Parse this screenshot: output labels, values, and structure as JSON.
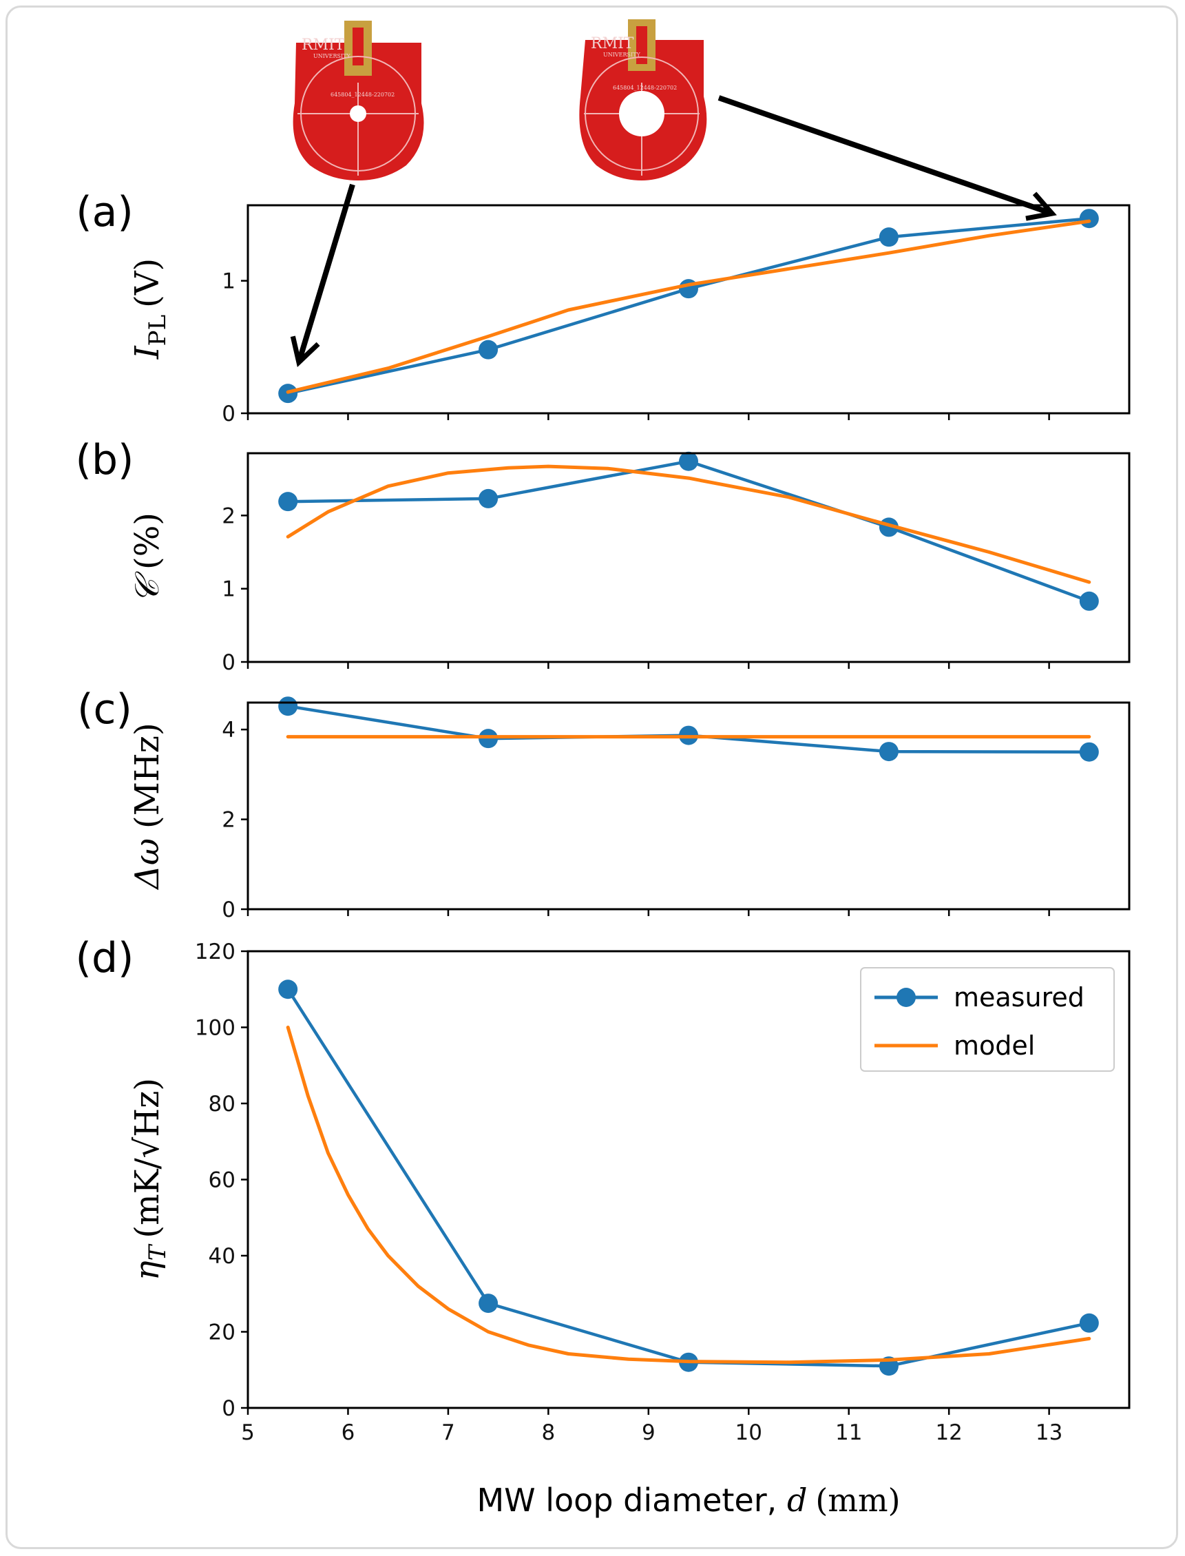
{
  "colors": {
    "measured": "#1f77b4",
    "model": "#ff7f0e",
    "pcb": "#d81f1f",
    "pad": "#c8a040"
  },
  "photos": {
    "left": {
      "logo": "RMIT",
      "sub": "UNIVERSITY",
      "serial": "645804_12448-220702",
      "icon": "pcb-photo-small-hole"
    },
    "right": {
      "logo": "RMIT",
      "sub": "UNIVERSITY",
      "serial": "645804_12448-220702",
      "icon": "pcb-photo-large-hole"
    }
  },
  "chart_data": [
    {
      "type": "line",
      "panel_label": "(a)",
      "ylabel": "I_PL (V)",
      "ylabel_main": "I",
      "ylabel_sub": "PL",
      "ylabel_unit": "(V)",
      "xlim": [
        5,
        13.8
      ],
      "ylim": [
        0,
        1.57
      ],
      "yticks": [
        0,
        1
      ],
      "xticks": [
        5,
        6,
        7,
        8,
        9,
        10,
        11,
        12,
        13
      ],
      "show_xtick_labels": false,
      "series": [
        {
          "name": "measured",
          "x": [
            5.4,
            7.4,
            9.4,
            11.4,
            13.4
          ],
          "values": [
            0.15,
            0.48,
            0.94,
            1.33,
            1.47
          ]
        },
        {
          "name": "model",
          "x": [
            5.4,
            6.4,
            7.4,
            8.2,
            9.4,
            10.4,
            11.4,
            12.4,
            13.4
          ],
          "values": [
            0.16,
            0.34,
            0.58,
            0.78,
            0.97,
            1.09,
            1.21,
            1.34,
            1.45
          ]
        }
      ]
    },
    {
      "type": "line",
      "panel_label": "(b)",
      "ylabel": "C (%)",
      "ylabel_main": "𝒞",
      "ylabel_unit": "(%)",
      "xlim": [
        5,
        13.8
      ],
      "ylim": [
        0,
        2.85
      ],
      "yticks": [
        0,
        1,
        2
      ],
      "xticks": [
        5,
        6,
        7,
        8,
        9,
        10,
        11,
        12,
        13
      ],
      "show_xtick_labels": false,
      "series": [
        {
          "name": "measured",
          "x": [
            5.4,
            7.4,
            9.4,
            11.4,
            13.4
          ],
          "values": [
            2.19,
            2.23,
            2.74,
            1.84,
            0.83
          ]
        },
        {
          "name": "model",
          "x": [
            5.4,
            5.8,
            6.4,
            7.0,
            7.6,
            8.0,
            8.6,
            9.4,
            10.4,
            11.4,
            12.4,
            13.4
          ],
          "values": [
            1.71,
            2.05,
            2.4,
            2.58,
            2.65,
            2.67,
            2.64,
            2.51,
            2.25,
            1.87,
            1.5,
            1.09
          ]
        }
      ]
    },
    {
      "type": "line",
      "panel_label": "(c)",
      "ylabel": "Δω (MHz)",
      "ylabel_main": "Δω",
      "ylabel_unit": "(MHz)",
      "xlim": [
        5,
        13.8
      ],
      "ylim": [
        0,
        4.6
      ],
      "yticks": [
        0,
        2,
        4
      ],
      "xticks": [
        5,
        6,
        7,
        8,
        9,
        10,
        11,
        12,
        13
      ],
      "show_xtick_labels": false,
      "series": [
        {
          "name": "measured",
          "x": [
            5.4,
            7.4,
            9.4,
            11.4,
            13.4
          ],
          "values": [
            4.52,
            3.8,
            3.87,
            3.51,
            3.5
          ]
        },
        {
          "name": "model",
          "x": [
            5.4,
            13.4
          ],
          "values": [
            3.84,
            3.84
          ]
        }
      ]
    },
    {
      "type": "line",
      "panel_label": "(d)",
      "ylabel": "η_T (mK/√Hz)",
      "ylabel_main": "η",
      "ylabel_sub": "T",
      "ylabel_unit": "(mK/√Hz)",
      "xlabel": "MW loop diameter, d (mm)",
      "xlabel_text": "MW loop diameter, ",
      "xlabel_var": "d",
      "xlabel_unit": "(mm)",
      "xlim": [
        5,
        13.8
      ],
      "ylim": [
        0,
        120
      ],
      "yticks": [
        0,
        20,
        40,
        60,
        80,
        100,
        120
      ],
      "xticks": [
        5,
        6,
        7,
        8,
        9,
        10,
        11,
        12,
        13
      ],
      "show_xtick_labels": true,
      "legend": {
        "position": "top-right",
        "entries": [
          "measured",
          "model"
        ]
      },
      "series": [
        {
          "name": "measured",
          "x": [
            5.4,
            7.4,
            9.4,
            11.4,
            13.4
          ],
          "values": [
            110,
            27.5,
            12,
            11,
            22.3
          ]
        },
        {
          "name": "model",
          "x": [
            5.4,
            5.6,
            5.8,
            6.0,
            6.2,
            6.4,
            6.7,
            7.0,
            7.4,
            7.8,
            8.2,
            8.8,
            9.4,
            10.4,
            11.4,
            12.4,
            13.4
          ],
          "values": [
            100,
            82,
            67,
            56,
            47,
            40,
            32,
            26,
            20,
            16.5,
            14.2,
            12.8,
            12.2,
            12.0,
            12.6,
            14.2,
            18.2
          ]
        }
      ]
    }
  ]
}
